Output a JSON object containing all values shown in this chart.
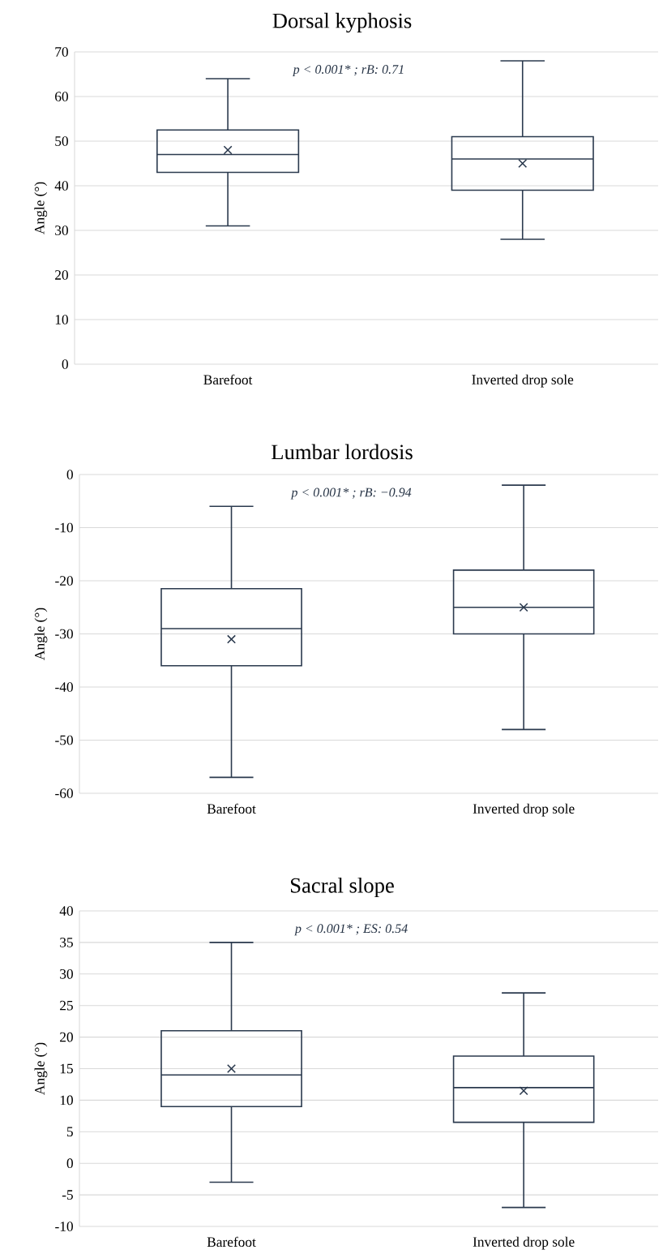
{
  "chart_data": [
    {
      "type": "box",
      "title": "Dorsal kyphosis",
      "ylabel": "Angle (°)",
      "categories": [
        "Barefoot",
        "Inverted drop sole"
      ],
      "color": "#2b3a4e",
      "boxes": [
        {
          "low": 31,
          "q1": 43,
          "median": 47,
          "q3": 52.5,
          "high": 64,
          "mean": 48
        },
        {
          "low": 28,
          "q1": 39,
          "median": 46,
          "q3": 51,
          "high": 68,
          "mean": 45
        }
      ],
      "ylim": [
        0,
        70
      ],
      "yticks": [
        0,
        10,
        20,
        30,
        40,
        50,
        60,
        70
      ],
      "grid": "y",
      "annotations": [
        "p < 0.001* ; rB: 0.71"
      ]
    },
    {
      "type": "box",
      "title": "Lumbar lordosis",
      "ylabel": "Angle (°)",
      "categories": [
        "Barefoot",
        "Inverted drop sole"
      ],
      "color": "#2b3a4e",
      "boxes": [
        {
          "low": -57,
          "q1": -36,
          "median": -29,
          "q3": -21.5,
          "high": -6,
          "mean": -31
        },
        {
          "low": -48,
          "q1": -30,
          "median": -25,
          "q3": -18,
          "high": -2,
          "mean": -25
        }
      ],
      "ylim": [
        -60,
        0
      ],
      "yticks": [
        -60,
        -50,
        -40,
        -30,
        -20,
        -10,
        0
      ],
      "grid": "y",
      "annotations": [
        "p < 0.001* ; rB: −0.94"
      ]
    },
    {
      "type": "box",
      "title": "Sacral slope",
      "ylabel": "Angle (°)",
      "categories": [
        "Barefoot",
        "Inverted drop sole"
      ],
      "color": "#2b3a4e",
      "boxes": [
        {
          "low": -3,
          "q1": 9,
          "median": 14,
          "q3": 21,
          "high": 35,
          "mean": 15
        },
        {
          "low": -7,
          "q1": 6.5,
          "median": 12,
          "q3": 17,
          "high": 27,
          "mean": 11.5
        }
      ],
      "ylim": [
        -10,
        40
      ],
      "yticks": [
        -10,
        -5,
        0,
        5,
        10,
        15,
        20,
        25,
        30,
        35,
        40
      ],
      "grid": "y",
      "annotations": [
        "p < 0.001* ; ES: 0.54"
      ]
    }
  ]
}
